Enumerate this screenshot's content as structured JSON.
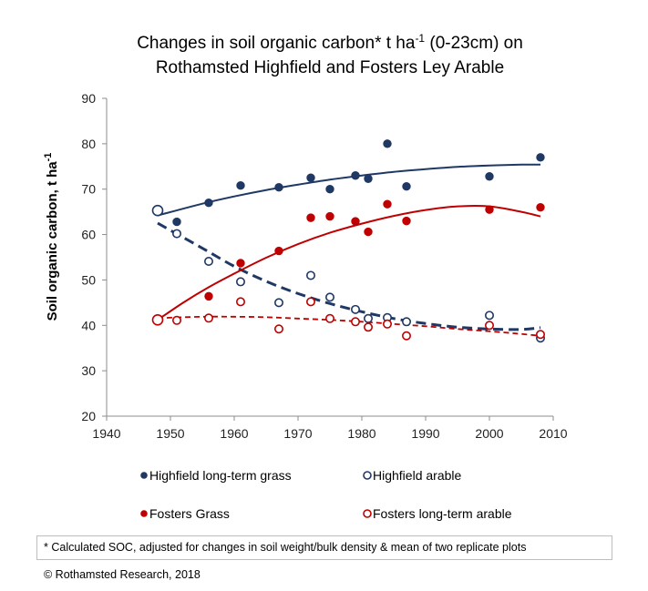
{
  "chart_data": {
    "type": "scatter",
    "title": {
      "line1_pre": "Changes  in  soil organic carbon*  t ha",
      "line1_sup": "-1",
      "line1_post": " (0-23cm)  on",
      "line2": "Rothamsted  Highfield  and Fosters Ley Arable"
    },
    "ylabel": {
      "text": "Soil organic carbon, t ha",
      "sup": "-1"
    },
    "xlabel": "",
    "xlim": [
      1940,
      2010
    ],
    "ylim": [
      20,
      90
    ],
    "x_ticks": [
      1940,
      1950,
      1960,
      1970,
      1980,
      1990,
      2000,
      2010
    ],
    "y_ticks": [
      20,
      30,
      40,
      50,
      60,
      70,
      80,
      90
    ],
    "grid": false,
    "legend_position": "bottom",
    "series": [
      {
        "name": "Highfield long-term grass",
        "color": "#1f3864",
        "marker": "filled",
        "points": [
          [
            1948,
            65.3
          ],
          [
            1951,
            62.8
          ],
          [
            1956,
            67.0
          ],
          [
            1961,
            70.8
          ],
          [
            1967,
            70.4
          ],
          [
            1972,
            72.5
          ],
          [
            1975,
            70.0
          ],
          [
            1979,
            73.0
          ],
          [
            1981,
            72.3
          ],
          [
            1984,
            80.0
          ],
          [
            1987,
            70.6
          ],
          [
            2000,
            72.8
          ],
          [
            2008,
            77.0
          ]
        ],
        "trend": {
          "style": "solid",
          "points": [
            [
              1948,
              64.2
            ],
            [
              1955,
              66.8
            ],
            [
              1960,
              68.4
            ],
            [
              1965,
              69.8
            ],
            [
              1970,
              71.0
            ],
            [
              1975,
              72.1
            ],
            [
              1980,
              73.0
            ],
            [
              1985,
              73.8
            ],
            [
              1990,
              74.4
            ],
            [
              1995,
              74.9
            ],
            [
              2000,
              75.2
            ],
            [
              2005,
              75.4
            ],
            [
              2008,
              75.4
            ]
          ]
        }
      },
      {
        "name": "Highfield arable",
        "color": "#1f3864",
        "marker": "open",
        "points": [
          [
            1948,
            65.3
          ],
          [
            1951,
            60.2
          ],
          [
            1956,
            54.1
          ],
          [
            1961,
            49.6
          ],
          [
            1967,
            45.0
          ],
          [
            1972,
            51.0
          ],
          [
            1975,
            46.2
          ],
          [
            1979,
            43.5
          ],
          [
            1981,
            41.5
          ],
          [
            1984,
            41.7
          ],
          [
            1987,
            40.8
          ],
          [
            2000,
            42.2
          ],
          [
            2008,
            37.2
          ]
        ],
        "trend": {
          "style": "dashed",
          "points": [
            [
              1948,
              62.5
            ],
            [
              1955,
              57.0
            ],
            [
              1960,
              53.0
            ],
            [
              1965,
              49.7
            ],
            [
              1970,
              47.0
            ],
            [
              1975,
              44.8
            ],
            [
              1980,
              43.0
            ],
            [
              1985,
              41.5
            ],
            [
              1990,
              40.4
            ],
            [
              1995,
              39.6
            ],
            [
              2000,
              39.2
            ],
            [
              2005,
              39.1
            ],
            [
              2008,
              39.5
            ]
          ]
        }
      },
      {
        "name": "Fosters Grass",
        "color": "#c00000",
        "marker": "filled",
        "points": [
          [
            1948,
            41.2
          ],
          [
            1956,
            46.4
          ],
          [
            1961,
            53.7
          ],
          [
            1967,
            56.4
          ],
          [
            1972,
            63.7
          ],
          [
            1975,
            64.0
          ],
          [
            1979,
            62.9
          ],
          [
            1981,
            60.6
          ],
          [
            1984,
            66.7
          ],
          [
            1987,
            63.0
          ],
          [
            2000,
            65.5
          ],
          [
            2008,
            66.0
          ]
        ],
        "trend": {
          "style": "solid",
          "points": [
            [
              1948,
              41.2
            ],
            [
              1952,
              45.0
            ],
            [
              1956,
              48.4
            ],
            [
              1960,
              51.4
            ],
            [
              1965,
              54.9
            ],
            [
              1970,
              57.9
            ],
            [
              1975,
              60.4
            ],
            [
              1980,
              62.4
            ],
            [
              1985,
              64.1
            ],
            [
              1990,
              65.4
            ],
            [
              1995,
              66.2
            ],
            [
              2000,
              66.2
            ],
            [
              2005,
              65.0
            ],
            [
              2008,
              64.0
            ]
          ]
        }
      },
      {
        "name": "Fosters long-term arable",
        "color": "#c00000",
        "marker": "open",
        "points": [
          [
            1948,
            41.2
          ],
          [
            1951,
            41.1
          ],
          [
            1956,
            41.6
          ],
          [
            1961,
            45.2
          ],
          [
            1967,
            39.2
          ],
          [
            1972,
            45.2
          ],
          [
            1975,
            41.5
          ],
          [
            1979,
            40.8
          ],
          [
            1981,
            39.6
          ],
          [
            1984,
            40.3
          ],
          [
            1987,
            37.7
          ],
          [
            2000,
            40.0
          ],
          [
            2008,
            38.0
          ]
        ],
        "trend": {
          "style": "dashed",
          "points": [
            [
              1948,
              41.6
            ],
            [
              1955,
              41.9
            ],
            [
              1960,
              41.9
            ],
            [
              1965,
              41.8
            ],
            [
              1970,
              41.5
            ],
            [
              1975,
              41.2
            ],
            [
              1980,
              40.8
            ],
            [
              1985,
              40.3
            ],
            [
              1990,
              39.8
            ],
            [
              1995,
              39.2
            ],
            [
              2000,
              38.7
            ],
            [
              2005,
              38.1
            ],
            [
              2008,
              37.7
            ]
          ]
        }
      }
    ]
  },
  "footnote": "* Calculated SOC, adjusted for changes in soil weight/bulk density & mean of two replicate plots",
  "copyright": "© Rothamsted Research, 2018"
}
